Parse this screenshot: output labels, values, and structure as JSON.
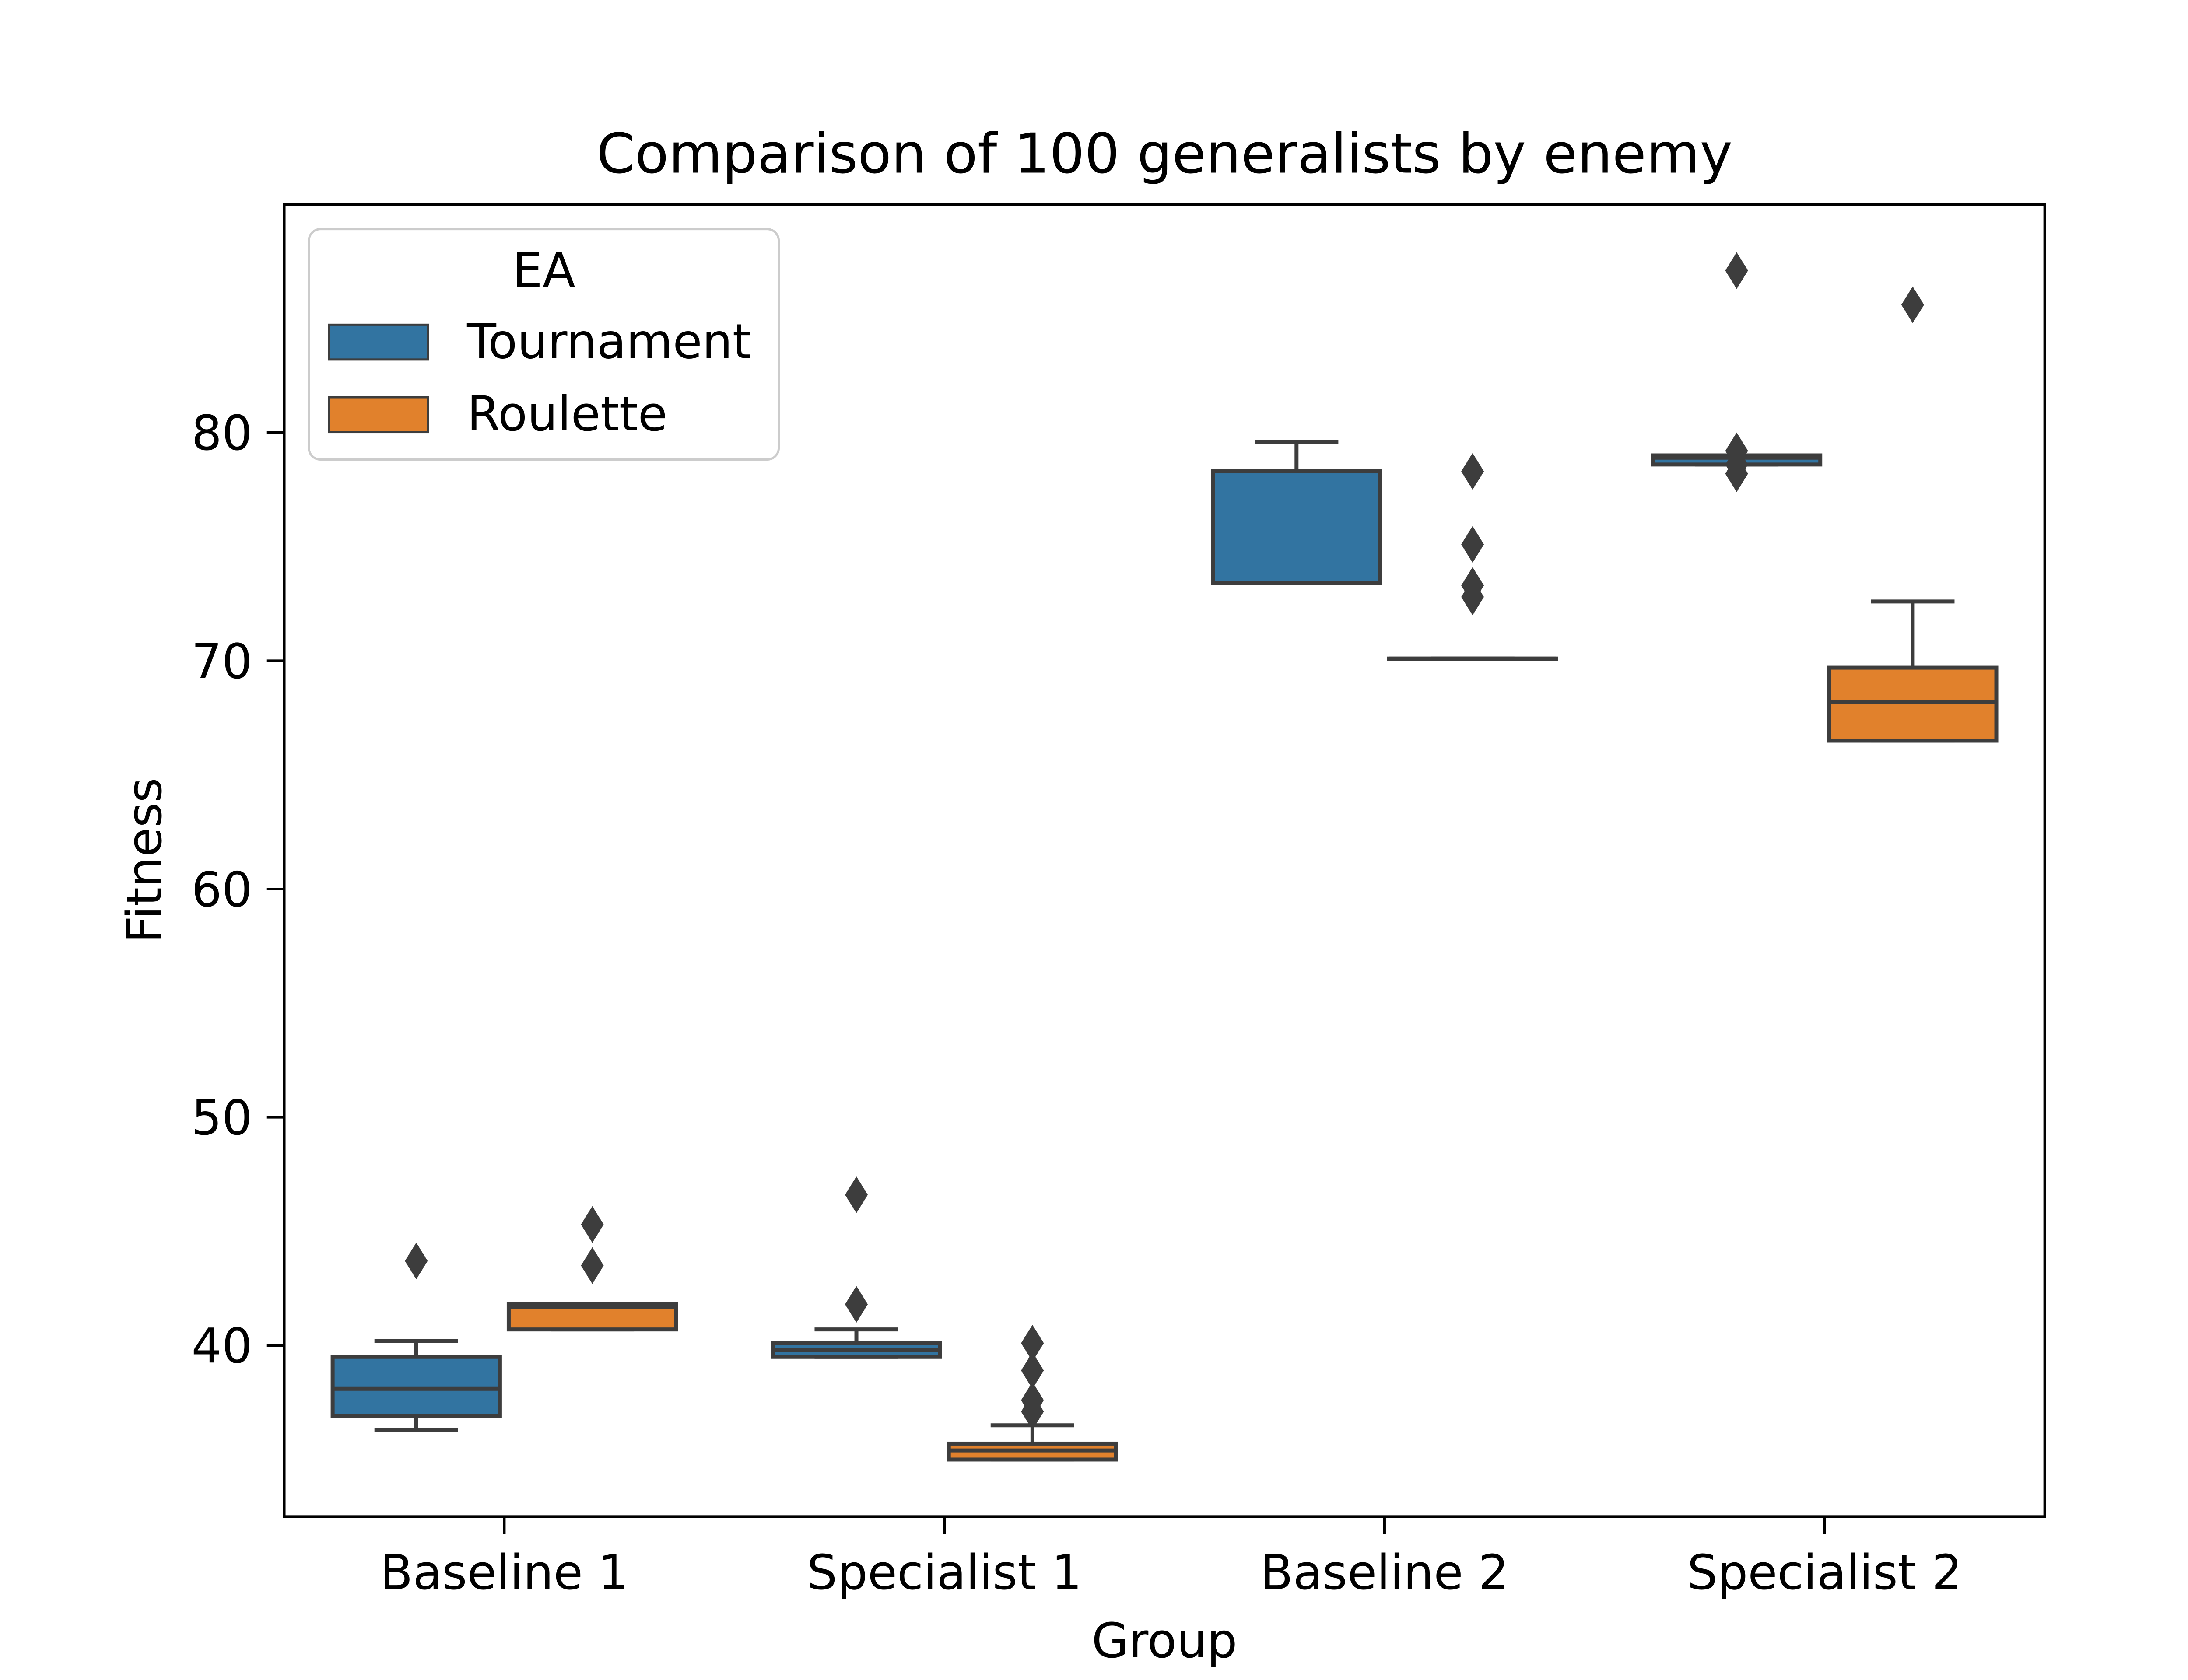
{
  "chart_data": {
    "type": "boxplot",
    "title": "Comparison of 100 generalists by enemy",
    "xlabel": "Group",
    "ylabel": "Fitness",
    "categories": [
      "Baseline 1",
      "Specialist 1",
      "Baseline 2",
      "Specialist 2"
    ],
    "ylim": [
      32.5,
      90.0
    ],
    "yticks": [
      40,
      50,
      60,
      70,
      80
    ],
    "grid": false,
    "legend": {
      "title": "EA",
      "placement": "top-left",
      "entries": [
        "Tournament",
        "Roulette"
      ]
    },
    "series": [
      {
        "name": "Tournament",
        "color": "#3274a1",
        "boxes": [
          {
            "category": "Baseline 1",
            "whisker_low": 36.3,
            "q1": 36.9,
            "median": 38.1,
            "q3": 39.5,
            "whisker_high": 40.2,
            "outliers": [
              43.7
            ]
          },
          {
            "category": "Specialist 1",
            "whisker_low": 39.5,
            "q1": 39.5,
            "median": 39.8,
            "q3": 40.1,
            "whisker_high": 40.7,
            "outliers": [
              41.8,
              46.6
            ]
          },
          {
            "category": "Baseline 2",
            "whisker_low": 73.4,
            "q1": 73.4,
            "median": 73.4,
            "q3": 78.3,
            "whisker_high": 79.6,
            "outliers": []
          },
          {
            "category": "Specialist 2",
            "whisker_low": 78.6,
            "q1": 78.6,
            "median": 78.9,
            "q3": 79.0,
            "whisker_high": 79.0,
            "outliers": [
              78.2,
              78.6,
              79.2,
              87.1
            ]
          }
        ]
      },
      {
        "name": "Roulette",
        "color": "#e1812c",
        "boxes": [
          {
            "category": "Baseline 1",
            "whisker_low": 40.7,
            "q1": 40.7,
            "median": 41.7,
            "q3": 41.8,
            "whisker_high": 41.8,
            "outliers": [
              43.5,
              45.3
            ]
          },
          {
            "category": "Specialist 1",
            "whisker_low": 35.0,
            "q1": 35.0,
            "median": 35.4,
            "q3": 35.7,
            "whisker_high": 36.5,
            "outliers": [
              37.1,
              37.6,
              38.9,
              40.1
            ]
          },
          {
            "category": "Baseline 2",
            "whisker_low": 70.1,
            "q1": 70.1,
            "median": 70.1,
            "q3": 70.1,
            "whisker_high": 70.1,
            "outliers": [
              72.8,
              73.3,
              75.1,
              78.3
            ]
          },
          {
            "category": "Specialist 2",
            "whisker_low": 66.5,
            "q1": 66.5,
            "median": 68.2,
            "q3": 69.7,
            "whisker_high": 72.6,
            "outliers": [
              85.6
            ]
          }
        ]
      }
    ]
  }
}
